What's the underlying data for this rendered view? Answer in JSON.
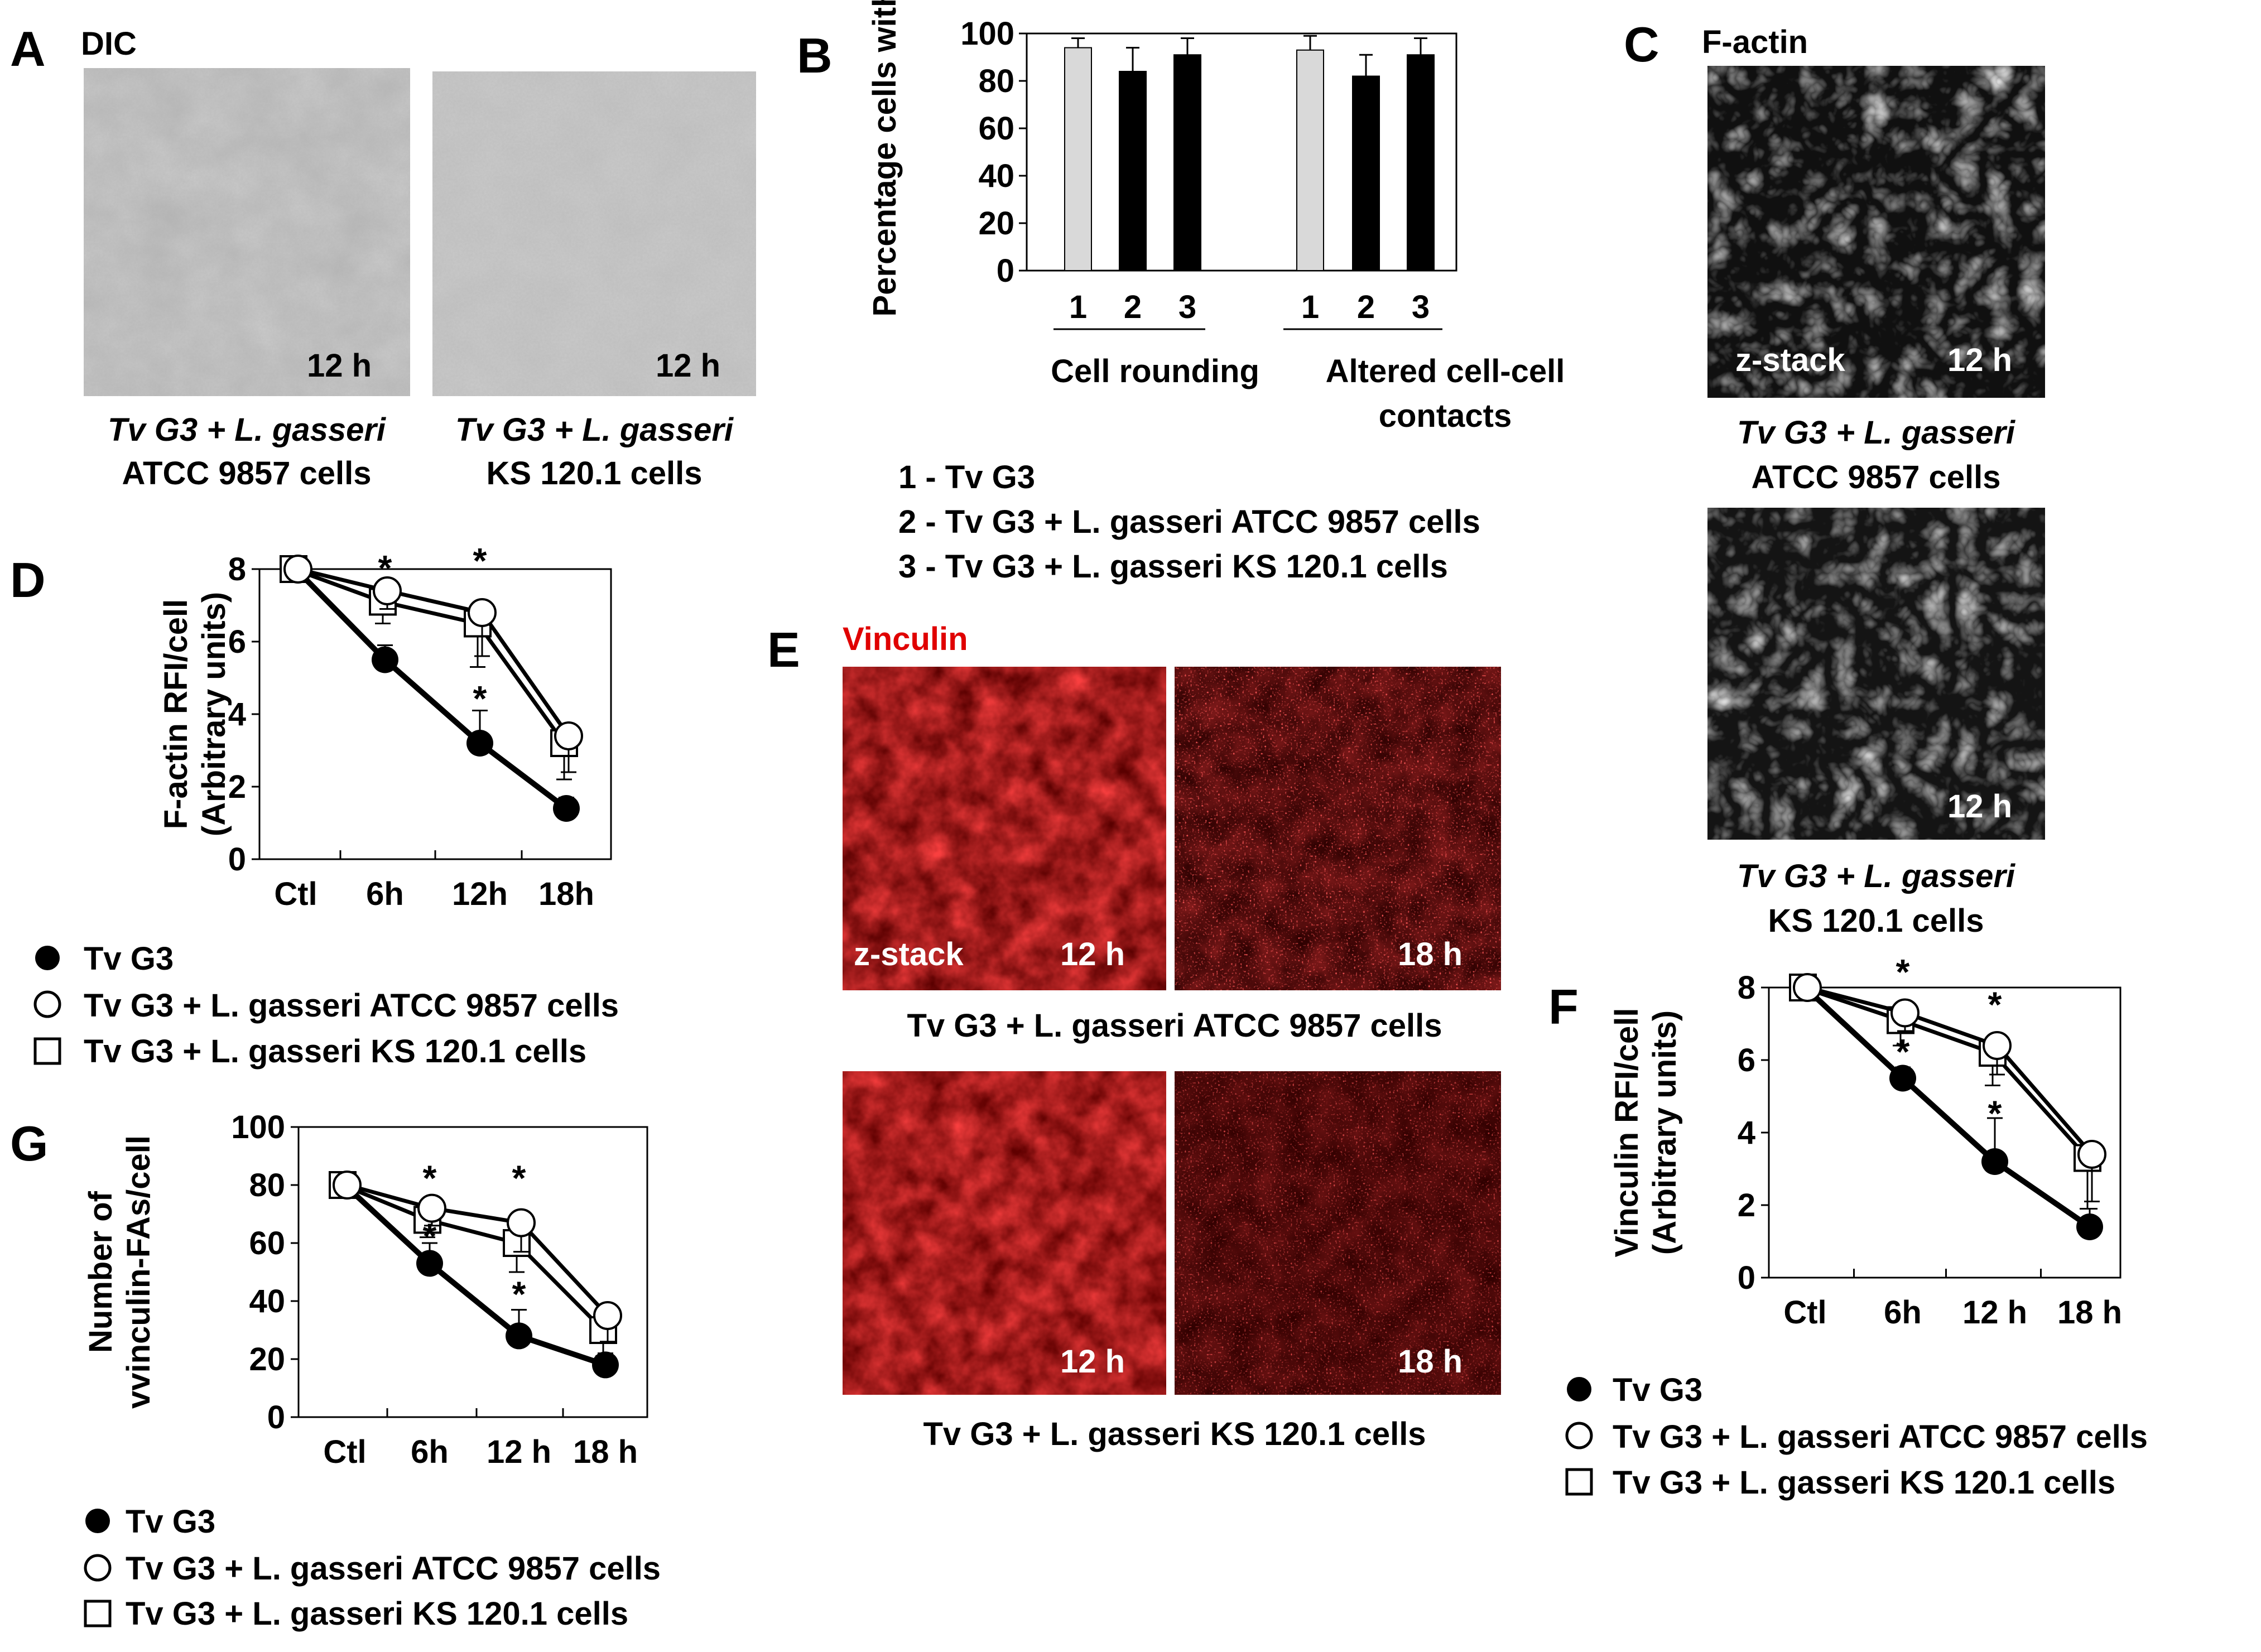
{
  "panelA": {
    "letter": "A",
    "title": "DIC",
    "images": [
      {
        "time": "12 h",
        "caption1": "Tv G3 + L. gasseri",
        "caption2": "ATCC 9857 cells"
      },
      {
        "time": "12 h",
        "caption1": "Tv G3 + L. gasseri",
        "caption2": "KS 120.1 cells"
      }
    ]
  },
  "panelB": {
    "letter": "B",
    "group_labels": [
      "Cell rounding",
      "Altered  cell-cell",
      "contacts"
    ],
    "legend": [
      "1 - Tv G3",
      "2 - Tv G3 + L. gasseri ATCC 9857 cells",
      "3 - Tv G3 + L. gasseri KS 120.1 cells"
    ],
    "colors": {
      "bar1": "#d9d9d9",
      "bar23": "#000000"
    }
  },
  "panelC": {
    "letter": "C",
    "title": "F-actin",
    "images": [
      {
        "time": "12 h",
        "tag": "z-stack",
        "caption1": "Tv G3 + L. gasseri",
        "caption2": "ATCC 9857 cells"
      },
      {
        "time": "12 h",
        "tag": "",
        "caption1": "Tv G3 + L. gasseri",
        "caption2": "KS 120.1 cells"
      }
    ]
  },
  "panelD": {
    "letter": "D",
    "legend": [
      "Tv G3",
      "Tv G3 + L. gasseri  ATCC 9857 cells",
      "Tv G3 + L. gasseri  KS 120.1 cells"
    ]
  },
  "panelE": {
    "letter": "E",
    "title": "Vinculin",
    "row1": {
      "t1": "12 h",
      "t2": "18 h",
      "tag": "z-stack",
      "caption": "Tv G3 + L. gasseri ATCC 9857 cells"
    },
    "row2": {
      "t1": "12 h",
      "t2": "18 h",
      "caption": "Tv G3 + L. gasseri KS 120.1 cells"
    },
    "color": "#e00000"
  },
  "panelF": {
    "letter": "F",
    "legend": [
      "Tv G3",
      "Tv G3 + L. gasseri ATCC 9857 cells",
      "Tv G3 + L. gasseri KS 120.1 cells"
    ]
  },
  "panelG": {
    "letter": "G",
    "legend": [
      "Tv G3",
      "Tv G3 + L. gasseri  ATCC 9857 cells",
      "Tv G3 + L. gasseri KS 120.1 cells"
    ]
  },
  "chart_data": [
    {
      "id": "B",
      "type": "bar",
      "ylabel": "Percentage cells with",
      "ylim": [
        0,
        100
      ],
      "yticks": [
        0,
        20,
        40,
        60,
        80,
        100
      ],
      "categories": [
        "1",
        "2",
        "3",
        "1",
        "2",
        "3"
      ],
      "values": [
        94,
        84,
        91,
        93,
        82,
        91
      ],
      "errors": [
        4,
        10,
        7,
        6,
        9,
        7
      ]
    },
    {
      "id": "D",
      "type": "line",
      "ylabel": "F-actin RFI/cell (Arbitrary units)",
      "ylim": [
        0,
        8
      ],
      "yticks": [
        0,
        2,
        4,
        6,
        8
      ],
      "categories": [
        "Ctl",
        "6h",
        "12h",
        "18h"
      ],
      "series": [
        {
          "name": "Tv G3",
          "marker": "filled-circle",
          "values": [
            8,
            5.5,
            3.2,
            1.4
          ],
          "errors": [
            0,
            0.4,
            0.9,
            0.3
          ]
        },
        {
          "name": "Tv G3 + L. gasseri  ATCC 9857 cells",
          "marker": "open-circle",
          "values": [
            8,
            7.4,
            6.8,
            3.4
          ],
          "errors": [
            0,
            0.5,
            1.2,
            1.0
          ]
        },
        {
          "name": "Tv G3 + L. gasseri  KS 120.1 cells",
          "marker": "open-square",
          "values": [
            8,
            7.1,
            6.5,
            3.2
          ],
          "errors": [
            0,
            0.6,
            1.2,
            1.0
          ]
        }
      ],
      "annotations": [
        {
          "x": "6h",
          "y": 8.0,
          "text": "*"
        },
        {
          "x": "12h",
          "y": 8.2,
          "text": "*"
        },
        {
          "x": "12h",
          "y": 4.4,
          "text": "*"
        }
      ]
    },
    {
      "id": "F",
      "type": "line",
      "ylabel": "Vinculin RFI/cell (Arbitrary units)",
      "ylim": [
        0,
        8
      ],
      "yticks": [
        0,
        2,
        4,
        6,
        8
      ],
      "categories": [
        "Ctl",
        "6h",
        "12 h",
        "18 h"
      ],
      "series": [
        {
          "name": "Tv G3",
          "marker": "filled-circle",
          "values": [
            8,
            5.5,
            3.2,
            1.4
          ],
          "errors": [
            0,
            0.3,
            1.2,
            0.5
          ]
        },
        {
          "name": "Tv G3 + L. gasseri ATCC 9857 cells",
          "marker": "open-circle",
          "values": [
            8,
            7.3,
            6.4,
            3.4
          ],
          "errors": [
            0,
            0.5,
            0.8,
            1.3
          ]
        },
        {
          "name": "Tv G3 + L. gasseri KS 120.1 cells",
          "marker": "open-square",
          "values": [
            8,
            7.1,
            6.2,
            3.3
          ],
          "errors": [
            0,
            0.7,
            0.9,
            1.4
          ]
        }
      ],
      "annotations": [
        {
          "x": "6h",
          "y": 8.4,
          "text": "*"
        },
        {
          "x": "12 h",
          "y": 7.5,
          "text": "*"
        },
        {
          "x": "6h",
          "y": 6.2,
          "text": "*"
        },
        {
          "x": "12 h",
          "y": 4.5,
          "text": "*"
        }
      ]
    },
    {
      "id": "G",
      "type": "line",
      "ylabel": "Number of vvinculin-FAs/cell",
      "ylim": [
        0,
        100
      ],
      "yticks": [
        0,
        20,
        40,
        60,
        80,
        100
      ],
      "categories": [
        "Ctl",
        "6h",
        "12 h",
        "18 h"
      ],
      "series": [
        {
          "name": "Tv G3",
          "marker": "filled-circle",
          "values": [
            80,
            53,
            28,
            18
          ],
          "errors": [
            0,
            7,
            9,
            4
          ]
        },
        {
          "name": "Tv G3 + L. gasseri  ATCC 9857 cells",
          "marker": "open-circle",
          "values": [
            80,
            72,
            67,
            35
          ],
          "errors": [
            0,
            6,
            10,
            9
          ]
        },
        {
          "name": "Tv G3 + L. gasseri KS 120.1 cells",
          "marker": "open-square",
          "values": [
            80,
            68,
            60,
            30
          ],
          "errors": [
            0,
            6,
            10,
            9
          ]
        }
      ],
      "annotations": [
        {
          "x": "6h",
          "y": 82,
          "text": "*"
        },
        {
          "x": "12 h",
          "y": 82,
          "text": "*"
        },
        {
          "x": "6h",
          "y": 62,
          "text": "*"
        },
        {
          "x": "12 h",
          "y": 42,
          "text": "*"
        }
      ]
    }
  ]
}
